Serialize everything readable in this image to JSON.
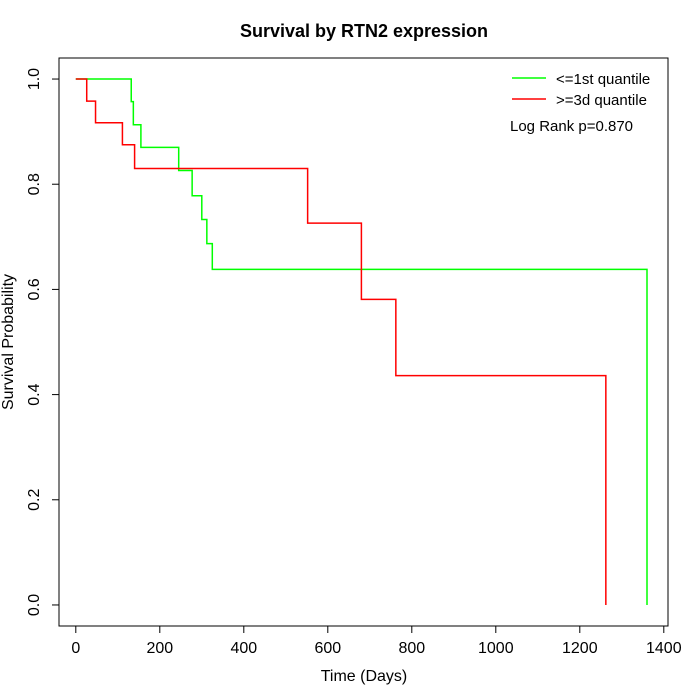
{
  "chart_data": {
    "type": "line",
    "title": "Survival by RTN2 expression",
    "xlabel": "Time (Days)",
    "ylabel": "Survival Probability",
    "xlim": [
      -40,
      1410
    ],
    "ylim": [
      -0.04,
      1.04
    ],
    "xticks": [
      0,
      200,
      400,
      600,
      800,
      1000,
      1200,
      1400
    ],
    "yticks": [
      0.0,
      0.2,
      0.4,
      0.6,
      0.8,
      1.0
    ],
    "xtick_labels": [
      "0",
      "200",
      "400",
      "600",
      "800",
      "1000",
      "1200",
      "1400"
    ],
    "ytick_labels": [
      "0.0",
      "0.2",
      "0.4",
      "0.6",
      "0.8",
      "1.0"
    ],
    "grid": false,
    "legend_position": "top-right",
    "annotation": "Log Rank p=0.870",
    "series": [
      {
        "name": "<=1st quantile",
        "color": "#00ff00",
        "steps": [
          [
            0,
            1.0
          ],
          [
            132,
            0.957
          ],
          [
            137,
            0.913
          ],
          [
            155,
            0.87
          ],
          [
            245,
            0.826
          ],
          [
            277,
            0.778
          ],
          [
            300,
            0.733
          ],
          [
            312,
            0.687
          ],
          [
            325,
            0.638
          ],
          [
            1360,
            0.0
          ]
        ]
      },
      {
        "name": ">=3d quantile",
        "color": "#ff0000",
        "steps": [
          [
            0,
            1.0
          ],
          [
            26,
            0.958
          ],
          [
            47,
            0.917
          ],
          [
            111,
            0.875
          ],
          [
            140,
            0.83
          ],
          [
            552,
            0.726
          ],
          [
            680,
            0.581
          ],
          [
            762,
            0.436
          ],
          [
            1262,
            0.0
          ]
        ]
      }
    ]
  }
}
